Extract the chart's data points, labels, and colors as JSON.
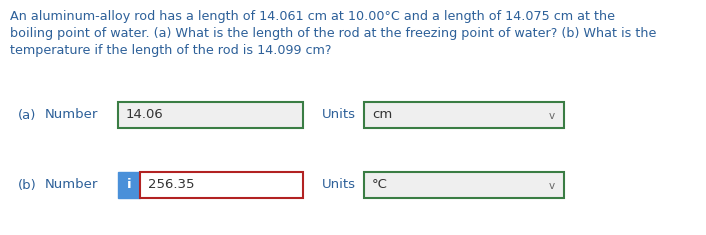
{
  "bg_color": "#ffffff",
  "text_color": "#2d6099",
  "paragraph_line1": "An aluminum-alloy rod has a length of 14.061 cm at 10.00°C and a length of 14.075 cm at the",
  "paragraph_line2": "boiling point of water. (a) What is the length of the rod at the freezing point of water? (b) What is the",
  "paragraph_line3": "temperature if the length of the rod is 14.099 cm?",
  "row_a_label1": "(a)",
  "row_a_label2": "Number",
  "row_a_value": "14.06",
  "row_a_units_label": "Units",
  "row_a_units_value": "cm",
  "row_b_label1": "(b)",
  "row_b_label2": "Number",
  "row_b_value": "256.35",
  "row_b_units_label": "Units",
  "row_b_units_value": "°C",
  "green_border": "#3a7d44",
  "red_border": "#b22222",
  "blue_i_bg": "#4a90d9",
  "box_fill": "#efefef",
  "white_fill": "#ffffff",
  "chevron_color": "#666666",
  "value_color": "#333333",
  "font_size_para": 9.2,
  "font_size_ui": 9.5
}
